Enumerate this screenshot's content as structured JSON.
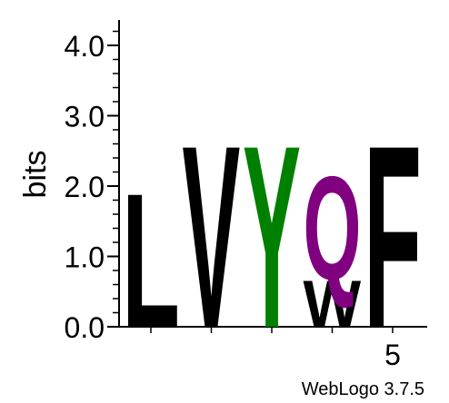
{
  "chart_data": {
    "type": "sequence-logo",
    "title": "",
    "ylabel": "bits",
    "ylim": [
      0,
      4.3
    ],
    "yticks": [
      {
        "value": 0,
        "label": "0.0"
      },
      {
        "value": 1,
        "label": "1.0"
      },
      {
        "value": 2,
        "label": "2.0"
      },
      {
        "value": 3,
        "label": "3.0"
      },
      {
        "value": 4,
        "label": "4.0"
      }
    ],
    "xticks": [
      {
        "position": 1,
        "label": ""
      },
      {
        "position": 2,
        "label": ""
      },
      {
        "position": 3,
        "label": ""
      },
      {
        "position": 4,
        "label": ""
      },
      {
        "position": 5,
        "label": "5"
      }
    ],
    "colors": {
      "L": "#000000",
      "V": "#000000",
      "Y": "#008000",
      "W": "#000000",
      "Q": "#800080",
      "F": "#000000"
    },
    "positions": [
      {
        "position": 1,
        "letters": [
          {
            "letter": "L",
            "bits": 1.95
          }
        ]
      },
      {
        "position": 2,
        "letters": [
          {
            "letter": "V",
            "bits": 2.65
          }
        ]
      },
      {
        "position": 3,
        "letters": [
          {
            "letter": "Y",
            "bits": 2.65
          }
        ]
      },
      {
        "position": 4,
        "letters": [
          {
            "letter": "W",
            "bits": 0.68
          },
          {
            "letter": "Q",
            "bits": 1.5
          }
        ]
      },
      {
        "position": 5,
        "letters": [
          {
            "letter": "F",
            "bits": 2.65
          }
        ]
      }
    ]
  },
  "footer": {
    "credit": "WebLogo 3.7.5"
  }
}
